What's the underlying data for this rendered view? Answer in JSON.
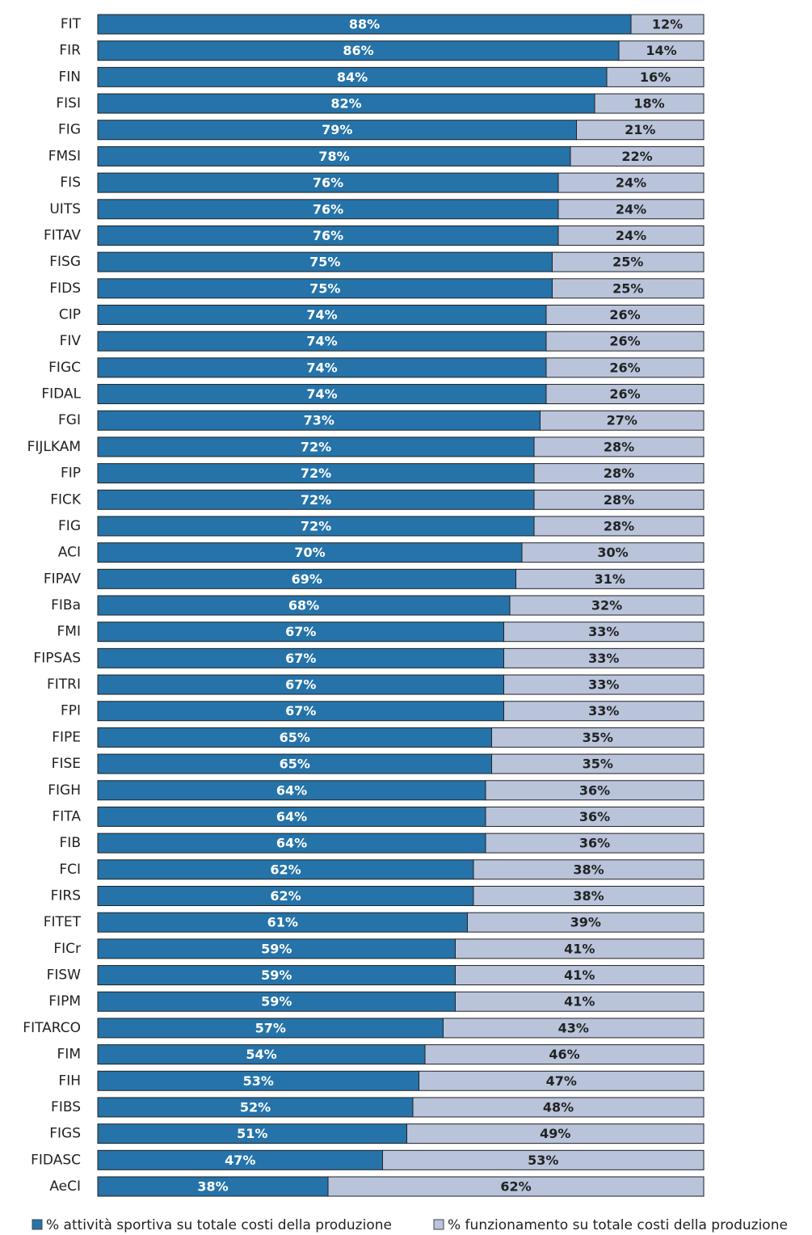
{
  "chart_data": {
    "type": "stacked_bar_horizontal",
    "categories": [
      "FIT",
      "FIR",
      "FIN",
      "FISI",
      "FIG",
      "FMSI",
      "FIS",
      "UITS",
      "FITAV",
      "FISG",
      "FIDS",
      "CIP",
      "FIV",
      "FIGC",
      "FIDAL",
      "FGI",
      "FIJLKAM",
      "FIP",
      "FICK",
      "FIG",
      "ACI",
      "FIPAV",
      "FIBa",
      "FMI",
      "FIPSAS",
      "FITRI",
      "FPI",
      "FIPE",
      "FISE",
      "FIGH",
      "FITA",
      "FIB",
      "FCI",
      "FIRS",
      "FITET",
      "FICr",
      "FISW",
      "FIPM",
      "FITARCO",
      "FIM",
      "FIH",
      "FIBS",
      "FIGS",
      "FIDASC",
      "AeCI"
    ],
    "series": [
      {
        "name": "% attività sportiva su totale costi della produzione",
        "color": "#2573a9",
        "values": [
          88,
          86,
          84,
          82,
          79,
          78,
          76,
          76,
          76,
          75,
          75,
          74,
          74,
          74,
          74,
          73,
          72,
          72,
          72,
          72,
          70,
          69,
          68,
          67,
          67,
          67,
          67,
          65,
          65,
          64,
          64,
          64,
          62,
          62,
          61,
          59,
          59,
          59,
          57,
          54,
          53,
          52,
          51,
          47,
          38
        ],
        "value_labels": [
          "88%",
          "86%",
          "84%",
          "82%",
          "79%",
          "78%",
          "76%",
          "76%",
          "76%",
          "75%",
          "75%",
          "74%",
          "74%",
          "74%",
          "74%",
          "73%",
          "72%",
          "72%",
          "72%",
          "72%",
          "70%",
          "69%",
          "68%",
          "67%",
          "67%",
          "67%",
          "67%",
          "65%",
          "65%",
          "64%",
          "64%",
          "64%",
          "62%",
          "62%",
          "61%",
          "59%",
          "59%",
          "59%",
          "57%",
          "54%",
          "53%",
          "52%",
          "51%",
          "47%",
          "38%"
        ]
      },
      {
        "name": "% funzionamento su totale costi della produzione",
        "color": "#b9c4db",
        "values": [
          12,
          14,
          16,
          18,
          21,
          22,
          24,
          24,
          24,
          25,
          25,
          26,
          26,
          26,
          26,
          27,
          28,
          28,
          28,
          28,
          30,
          31,
          32,
          33,
          33,
          33,
          33,
          35,
          35,
          36,
          36,
          36,
          38,
          38,
          39,
          41,
          41,
          41,
          43,
          46,
          47,
          48,
          49,
          53,
          62
        ],
        "value_labels": [
          "12%",
          "14%",
          "16%",
          "18%",
          "21%",
          "22%",
          "24%",
          "24%",
          "24%",
          "25%",
          "25%",
          "26%",
          "26%",
          "26%",
          "26%",
          "27%",
          "28%",
          "28%",
          "28%",
          "28%",
          "30%",
          "31%",
          "32%",
          "33%",
          "33%",
          "33%",
          "33%",
          "35%",
          "35%",
          "36%",
          "36%",
          "36%",
          "38%",
          "38%",
          "39%",
          "41%",
          "41%",
          "41%",
          "43%",
          "46%",
          "47%",
          "48%",
          "49%",
          "53%",
          "62%"
        ]
      }
    ]
  }
}
